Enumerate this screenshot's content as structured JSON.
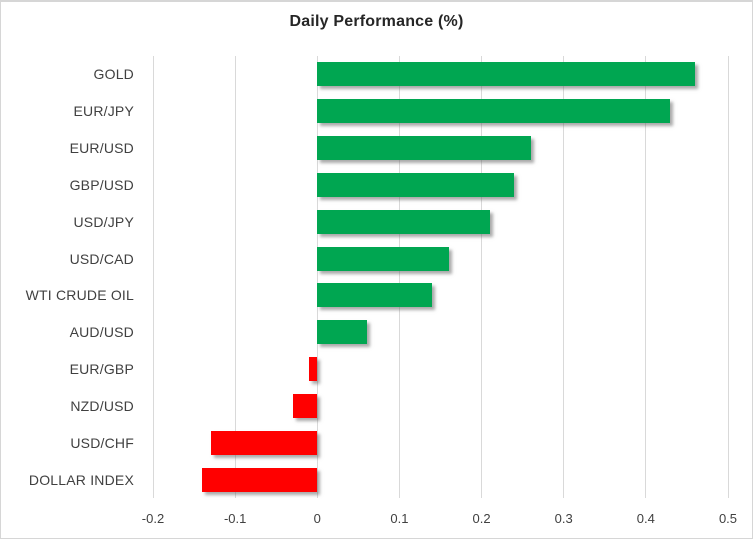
{
  "chart_data": {
    "type": "bar",
    "orientation": "horizontal",
    "title": "Daily Performance (%)",
    "categories": [
      "GOLD",
      "EUR/JPY",
      "EUR/USD",
      "GBP/USD",
      "USD/JPY",
      "USD/CAD",
      "WTI CRUDE OIL",
      "AUD/USD",
      "EUR/GBP",
      "NZD/USD",
      "USD/CHF",
      "DOLLAR INDEX"
    ],
    "values": [
      0.46,
      0.43,
      0.26,
      0.24,
      0.21,
      0.16,
      0.14,
      0.06,
      -0.01,
      -0.03,
      -0.13,
      -0.14
    ],
    "xlabel": "",
    "ylabel": "",
    "xlim": [
      -0.2,
      0.5
    ],
    "xticks": [
      -0.2,
      -0.1,
      0,
      0.1,
      0.2,
      0.3,
      0.4,
      0.5
    ],
    "xtick_labels": [
      "-0.2",
      "-0.1",
      "0",
      "0.1",
      "0.2",
      "0.3",
      "0.4",
      "0.5"
    ],
    "grid": "vertical",
    "legend": "none",
    "colors": {
      "positive": "#00A651",
      "negative": "#FF0000",
      "gridline": "#D9D9D9",
      "text": "#404040",
      "title_text": "#262626"
    }
  }
}
